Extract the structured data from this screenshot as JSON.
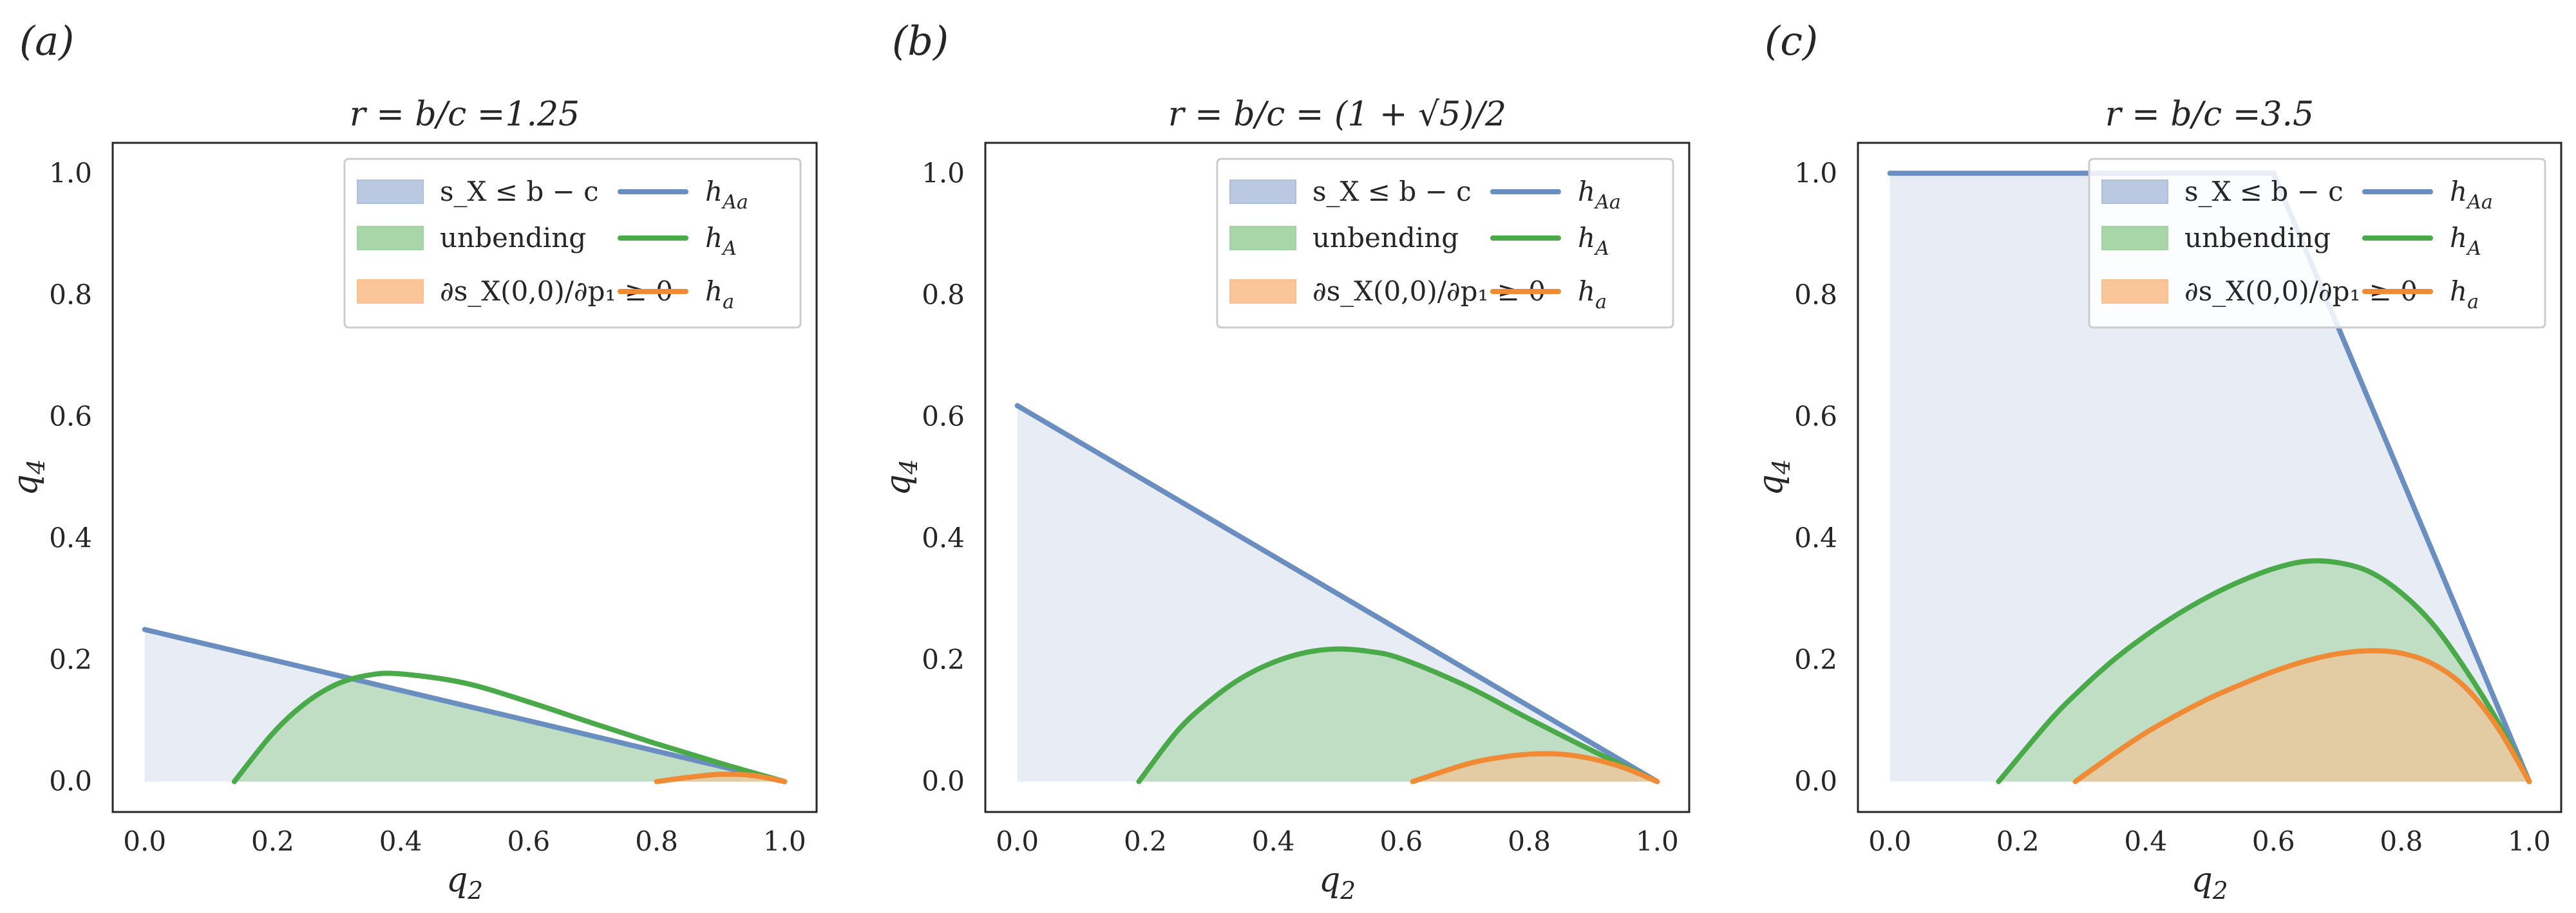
{
  "colors": {
    "h_Aa": "#6a8ec0",
    "h_A": "#4aaa4a",
    "h_a": "#f08a35",
    "fill_sx": "#aebfdc",
    "fill_unbending": "#a3d4a3",
    "fill_ds": "#fbbf8f",
    "axes": "#262626",
    "legend_border": "#cccccc"
  },
  "legend": {
    "entries": [
      {
        "key": "sx",
        "label": "s_X ≤ b − c",
        "kind": "patch"
      },
      {
        "key": "unbending",
        "label": "unbending",
        "kind": "patch"
      },
      {
        "key": "ds",
        "label": "∂s_X(0,0)/∂p₁ ≥ 0",
        "kind": "patch"
      },
      {
        "key": "h_Aa",
        "label": "h_Aa",
        "kind": "line"
      },
      {
        "key": "h_A",
        "label": "h_A",
        "kind": "line"
      },
      {
        "key": "h_a",
        "label": "h_a",
        "kind": "line"
      }
    ]
  },
  "chart_data": [
    {
      "panel": "(a)",
      "type": "line",
      "title": "r = b/c =1.25",
      "xlabel": "q2",
      "ylabel": "q4",
      "xlim": [
        -0.05,
        1.05
      ],
      "ylim": [
        -0.05,
        1.05
      ],
      "xticks": [
        "0.0",
        "0.2",
        "0.4",
        "0.6",
        "0.8",
        "1.0"
      ],
      "yticks": [
        "0.0",
        "0.2",
        "0.4",
        "0.6",
        "0.8",
        "1.0"
      ],
      "legend_position": "upper right",
      "grid": false,
      "series": [
        {
          "name": "h_Aa",
          "color": "#6a8ec0",
          "x": [
            0.0,
            1.0
          ],
          "y": [
            0.25,
            0.0
          ]
        },
        {
          "name": "h_A",
          "color": "#4aaa4a",
          "x": [
            0.14,
            0.2,
            0.25,
            0.3,
            0.35,
            0.4,
            0.5,
            0.6,
            0.7,
            0.8,
            0.9,
            1.0
          ],
          "y": [
            0.0,
            0.079,
            0.128,
            0.16,
            0.175,
            0.177,
            0.162,
            0.131,
            0.096,
            0.062,
            0.03,
            0.0
          ]
        },
        {
          "name": "h_a",
          "color": "#f08a35",
          "x": [
            0.8,
            0.85,
            0.9,
            0.95,
            1.0
          ],
          "y": [
            0.0,
            0.007,
            0.012,
            0.01,
            0.0
          ]
        }
      ],
      "regions": [
        {
          "name": "s_X ≤ b − c",
          "bounded_by": "h_Aa"
        },
        {
          "name": "unbending",
          "bounded_by": "min(h_A, h_Aa)"
        },
        {
          "name": "∂s_X(0,0)/∂p₁ ≥ 0",
          "bounded_by": "h_a"
        }
      ]
    },
    {
      "panel": "(b)",
      "type": "line",
      "title": "r = b/c = (1 + √5)/2",
      "xlabel": "q2",
      "ylabel": "q4",
      "xlim": [
        -0.05,
        1.05
      ],
      "ylim": [
        -0.05,
        1.05
      ],
      "xticks": [
        "0.0",
        "0.2",
        "0.4",
        "0.6",
        "0.8",
        "1.0"
      ],
      "yticks": [
        "0.0",
        "0.2",
        "0.4",
        "0.6",
        "0.8",
        "1.0"
      ],
      "legend_position": "upper right",
      "grid": false,
      "series": [
        {
          "name": "h_Aa",
          "color": "#6a8ec0",
          "x": [
            0.0,
            1.0
          ],
          "y": [
            0.618,
            0.0
          ]
        },
        {
          "name": "h_A",
          "color": "#4aaa4a",
          "x": [
            0.19,
            0.25,
            0.3,
            0.35,
            0.4,
            0.45,
            0.5,
            0.55,
            0.6,
            0.7,
            0.8,
            0.9,
            1.0
          ],
          "y": [
            0.0,
            0.083,
            0.132,
            0.17,
            0.196,
            0.212,
            0.218,
            0.214,
            0.202,
            0.158,
            0.103,
            0.05,
            0.0
          ]
        },
        {
          "name": "h_a",
          "color": "#f08a35",
          "x": [
            0.618,
            0.7,
            0.75,
            0.8,
            0.85,
            0.9,
            0.95,
            1.0
          ],
          "y": [
            0.0,
            0.028,
            0.039,
            0.045,
            0.045,
            0.037,
            0.022,
            0.0
          ]
        }
      ],
      "regions": [
        {
          "name": "s_X ≤ b − c",
          "bounded_by": "h_Aa"
        },
        {
          "name": "unbending",
          "bounded_by": "min(h_A, h_Aa)"
        },
        {
          "name": "∂s_X(0,0)/∂p₁ ≥ 0",
          "bounded_by": "h_a"
        }
      ]
    },
    {
      "panel": "(c)",
      "type": "line",
      "title": "r = b/c =3.5",
      "xlabel": "q2",
      "ylabel": "q4",
      "xlim": [
        -0.05,
        1.05
      ],
      "ylim": [
        -0.05,
        1.05
      ],
      "xticks": [
        "0.0",
        "0.2",
        "0.4",
        "0.6",
        "0.8",
        "1.0"
      ],
      "yticks": [
        "0.0",
        "0.2",
        "0.4",
        "0.6",
        "0.8",
        "1.0"
      ],
      "legend_position": "upper right",
      "grid": false,
      "series": [
        {
          "name": "h_Aa",
          "color": "#6a8ec0",
          "x": [
            0.0,
            0.6,
            1.0
          ],
          "y": [
            1.0,
            1.0,
            0.0
          ]
        },
        {
          "name": "h_A",
          "color": "#4aaa4a",
          "x": [
            0.17,
            0.25,
            0.3,
            0.35,
            0.4,
            0.45,
            0.5,
            0.55,
            0.6,
            0.65,
            0.7,
            0.75,
            0.8,
            0.85,
            0.9,
            0.95,
            1.0
          ],
          "y": [
            0.0,
            0.1,
            0.153,
            0.2,
            0.24,
            0.275,
            0.305,
            0.33,
            0.35,
            0.362,
            0.36,
            0.345,
            0.31,
            0.258,
            0.185,
            0.1,
            0.0
          ]
        },
        {
          "name": "h_a",
          "color": "#f08a35",
          "x": [
            0.29,
            0.35,
            0.4,
            0.45,
            0.5,
            0.55,
            0.6,
            0.65,
            0.7,
            0.75,
            0.8,
            0.85,
            0.9,
            0.95,
            1.0
          ],
          "y": [
            0.0,
            0.045,
            0.08,
            0.11,
            0.137,
            0.16,
            0.181,
            0.198,
            0.21,
            0.215,
            0.211,
            0.193,
            0.155,
            0.09,
            0.0
          ]
        }
      ],
      "regions": [
        {
          "name": "s_X ≤ b − c",
          "bounded_by": "h_Aa"
        },
        {
          "name": "unbending",
          "bounded_by": "min(h_A, h_Aa)"
        },
        {
          "name": "∂s_X(0,0)/∂p₁ ≥ 0",
          "bounded_by": "h_a"
        }
      ]
    }
  ]
}
